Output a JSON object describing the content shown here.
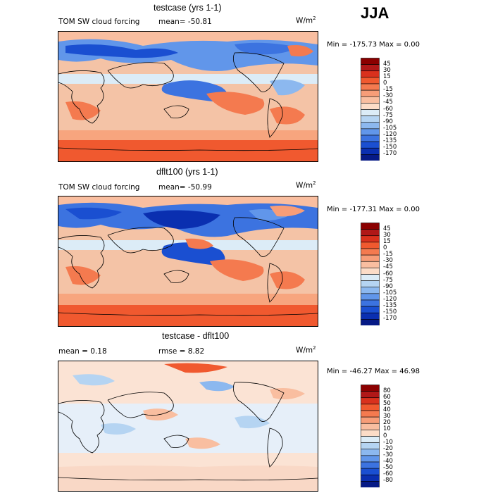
{
  "season": "JJA",
  "panels": [
    {
      "title": "testcase (yrs 1-1)",
      "field_label": "TOM SW cloud forcing",
      "stats_text": "mean= -50.81",
      "units": "W/m",
      "units_sup": "2",
      "minmax": "Min = -175.73 Max =    0.00",
      "colorbar_labels": [
        "45",
        "30",
        "15",
        "0",
        "-15",
        "-30",
        "-45",
        "-60",
        "-75",
        "-90",
        "-105",
        "-120",
        "-135",
        "-150",
        "-170"
      ],
      "colors": [
        "#8b0000",
        "#b01818",
        "#d9311d",
        "#f0592f",
        "#f47a4f",
        "#f79d78",
        "#f9bea0",
        "#fcdcc7",
        "#dcecf7",
        "#b5d4f2",
        "#8cb8ef",
        "#6196ea",
        "#3c73e0",
        "#1a4fd1",
        "#0a2fb0",
        "#061a86"
      ]
    },
    {
      "title": "dflt100 (yrs 1-1)",
      "field_label": "TOM SW cloud forcing",
      "stats_text": "mean= -50.99",
      "units": "W/m",
      "units_sup": "2",
      "minmax": "Min = -177.31 Max =    0.00",
      "colorbar_labels": [
        "45",
        "30",
        "15",
        "0",
        "-15",
        "-30",
        "-45",
        "-60",
        "-75",
        "-90",
        "-105",
        "-120",
        "-135",
        "-150",
        "-170"
      ],
      "colors": [
        "#8b0000",
        "#b01818",
        "#d9311d",
        "#f0592f",
        "#f47a4f",
        "#f79d78",
        "#f9bea0",
        "#fcdcc7",
        "#dcecf7",
        "#b5d4f2",
        "#8cb8ef",
        "#6196ea",
        "#3c73e0",
        "#1a4fd1",
        "#0a2fb0",
        "#061a86"
      ]
    },
    {
      "title": "testcase - dflt100",
      "mean_text": "mean =    0.18",
      "rmse_text": "rmse =    8.82",
      "units": "W/m",
      "units_sup": "2",
      "minmax": "Min = -46.27 Max =  46.98",
      "colorbar_labels": [
        "80",
        "60",
        "50",
        "40",
        "30",
        "20",
        "10",
        "0",
        "-10",
        "-20",
        "-30",
        "-40",
        "-50",
        "-60",
        "-80"
      ],
      "colors": [
        "#8b0000",
        "#b01818",
        "#d9311d",
        "#f0592f",
        "#f47a4f",
        "#f79d78",
        "#f9bea0",
        "#fcdcc7",
        "#dcecf7",
        "#b5d4f2",
        "#8cb8ef",
        "#6196ea",
        "#3c73e0",
        "#1a4fd1",
        "#0a2fb0",
        "#061a86"
      ]
    }
  ]
}
